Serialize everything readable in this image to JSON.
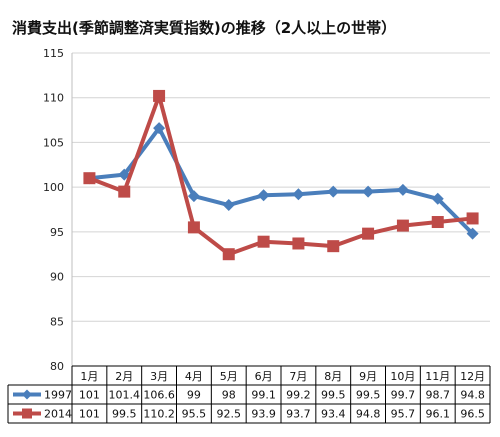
{
  "chart_data": {
    "type": "line",
    "title": "消費支出(季節調整済実質指数)の推移（2人以上の世帯）",
    "categories": [
      "1月",
      "2月",
      "3月",
      "4月",
      "5月",
      "6月",
      "7月",
      "8月",
      "9月",
      "10月",
      "11月",
      "12月"
    ],
    "ylim": [
      80,
      115
    ],
    "yticks": [
      80,
      85,
      90,
      95,
      100,
      105,
      110,
      115
    ],
    "grid": true,
    "legend": "data-table",
    "series": [
      {
        "name": "1997",
        "color": "#4a7ebb",
        "marker": "diamond",
        "values": [
          101,
          101.4,
          106.6,
          99,
          98,
          99.1,
          99.2,
          99.5,
          99.5,
          99.7,
          98.7,
          94.8
        ],
        "labels": [
          "101",
          "101.4",
          "106.6",
          "99",
          "98",
          "99.1",
          "99.2",
          "99.5",
          "99.5",
          "99.7",
          "98.7",
          "94.8"
        ]
      },
      {
        "name": "2014",
        "color": "#be4b48",
        "marker": "square",
        "values": [
          101,
          99.5,
          110.2,
          95.5,
          92.5,
          93.9,
          93.7,
          93.4,
          94.8,
          95.7,
          96.1,
          96.5
        ],
        "labels": [
          "101",
          "99.5",
          "110.2",
          "95.5",
          "92.5",
          "93.9",
          "93.7",
          "93.4",
          "94.8",
          "95.7",
          "96.1",
          "96.5"
        ]
      }
    ]
  }
}
